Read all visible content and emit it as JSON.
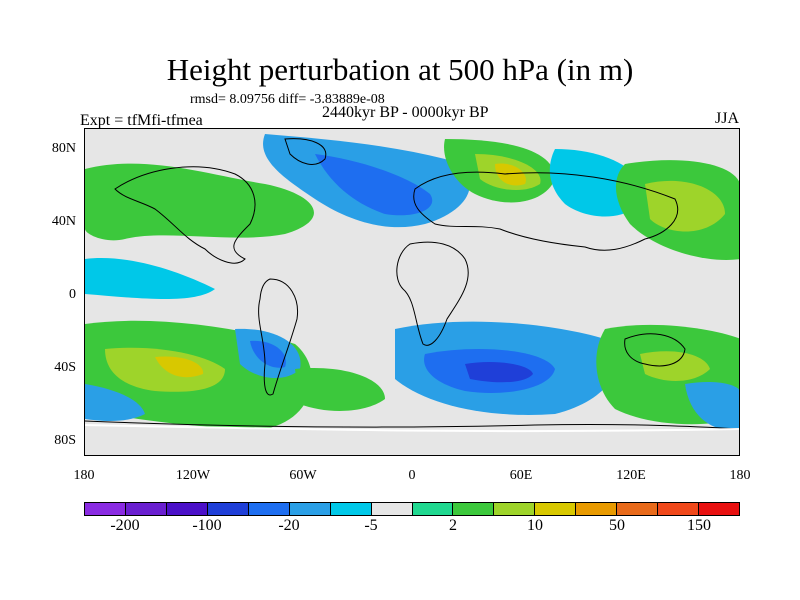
{
  "header": {
    "title": "Height perturbation at 500 hPa (in m)",
    "stats": "rmsd= 8.09756 diff= -3.83889e-08",
    "expt": "Expt = tfMfi-tfmea",
    "period": "2440kyr BP - 0000kyr BP",
    "season": "JJA"
  },
  "axes": {
    "lat_ticks": [
      "80N",
      "40N",
      "0",
      "40S",
      "80S"
    ],
    "lon_ticks": [
      "180",
      "120W",
      "60W",
      "0",
      "60E",
      "120E",
      "180"
    ]
  },
  "colorbar": {
    "colors": [
      "#8a2be2",
      "#6a1fd0",
      "#4b10c8",
      "#1f3fd8",
      "#1e6ef0",
      "#2a9fe6",
      "#00c8e8",
      "#e6e6e6",
      "#20d890",
      "#3cc83c",
      "#9ed42a",
      "#d8c800",
      "#e89a00",
      "#e86a1a",
      "#f0481a",
      "#e81010"
    ],
    "labels": [
      "-200",
      "-100",
      "-20",
      "-5",
      "2",
      "10",
      "50",
      "150"
    ]
  }
}
